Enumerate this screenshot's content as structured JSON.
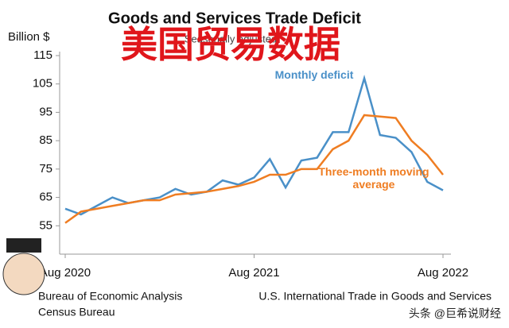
{
  "chart_data": {
    "type": "line",
    "title": "Goods and Services Trade Deficit",
    "subtitle": "Seasonally adjusted",
    "overlay_title": "美国贸易数据",
    "y_label": "Billion $",
    "sources": [
      "Bureau of Economic Analysis",
      "Census Bureau",
      "U.S. International Trade in Goods and Services"
    ],
    "watermark": "头条 @巨希说财经",
    "categories": [
      "Aug 2020",
      null,
      null,
      null,
      null,
      null,
      null,
      null,
      null,
      null,
      null,
      null,
      "Aug 2021",
      null,
      null,
      null,
      null,
      null,
      null,
      null,
      null,
      null,
      null,
      null,
      "Aug 2022"
    ],
    "series": [
      {
        "name": "Monthly deficit",
        "color": "#4a90c8",
        "values": [
          61,
          59,
          62,
          65,
          63,
          64,
          65,
          68,
          66,
          67,
          71,
          69.5,
          72,
          78.5,
          68.5,
          78,
          79,
          88,
          88,
          107,
          87,
          86,
          81,
          70.5,
          67.5
        ]
      },
      {
        "name": "Three-month moving average",
        "color": "#ef7d22",
        "values": [
          56,
          60,
          61,
          62,
          63,
          64,
          64,
          66,
          66.5,
          67,
          68,
          69,
          70.5,
          73,
          73,
          75,
          75,
          82,
          85,
          94,
          93.5,
          93,
          85,
          80,
          73
        ]
      }
    ],
    "ylim": [
      45,
      115
    ],
    "yticks": [
      55,
      65,
      75,
      85,
      95,
      105,
      115
    ],
    "grid": false
  }
}
